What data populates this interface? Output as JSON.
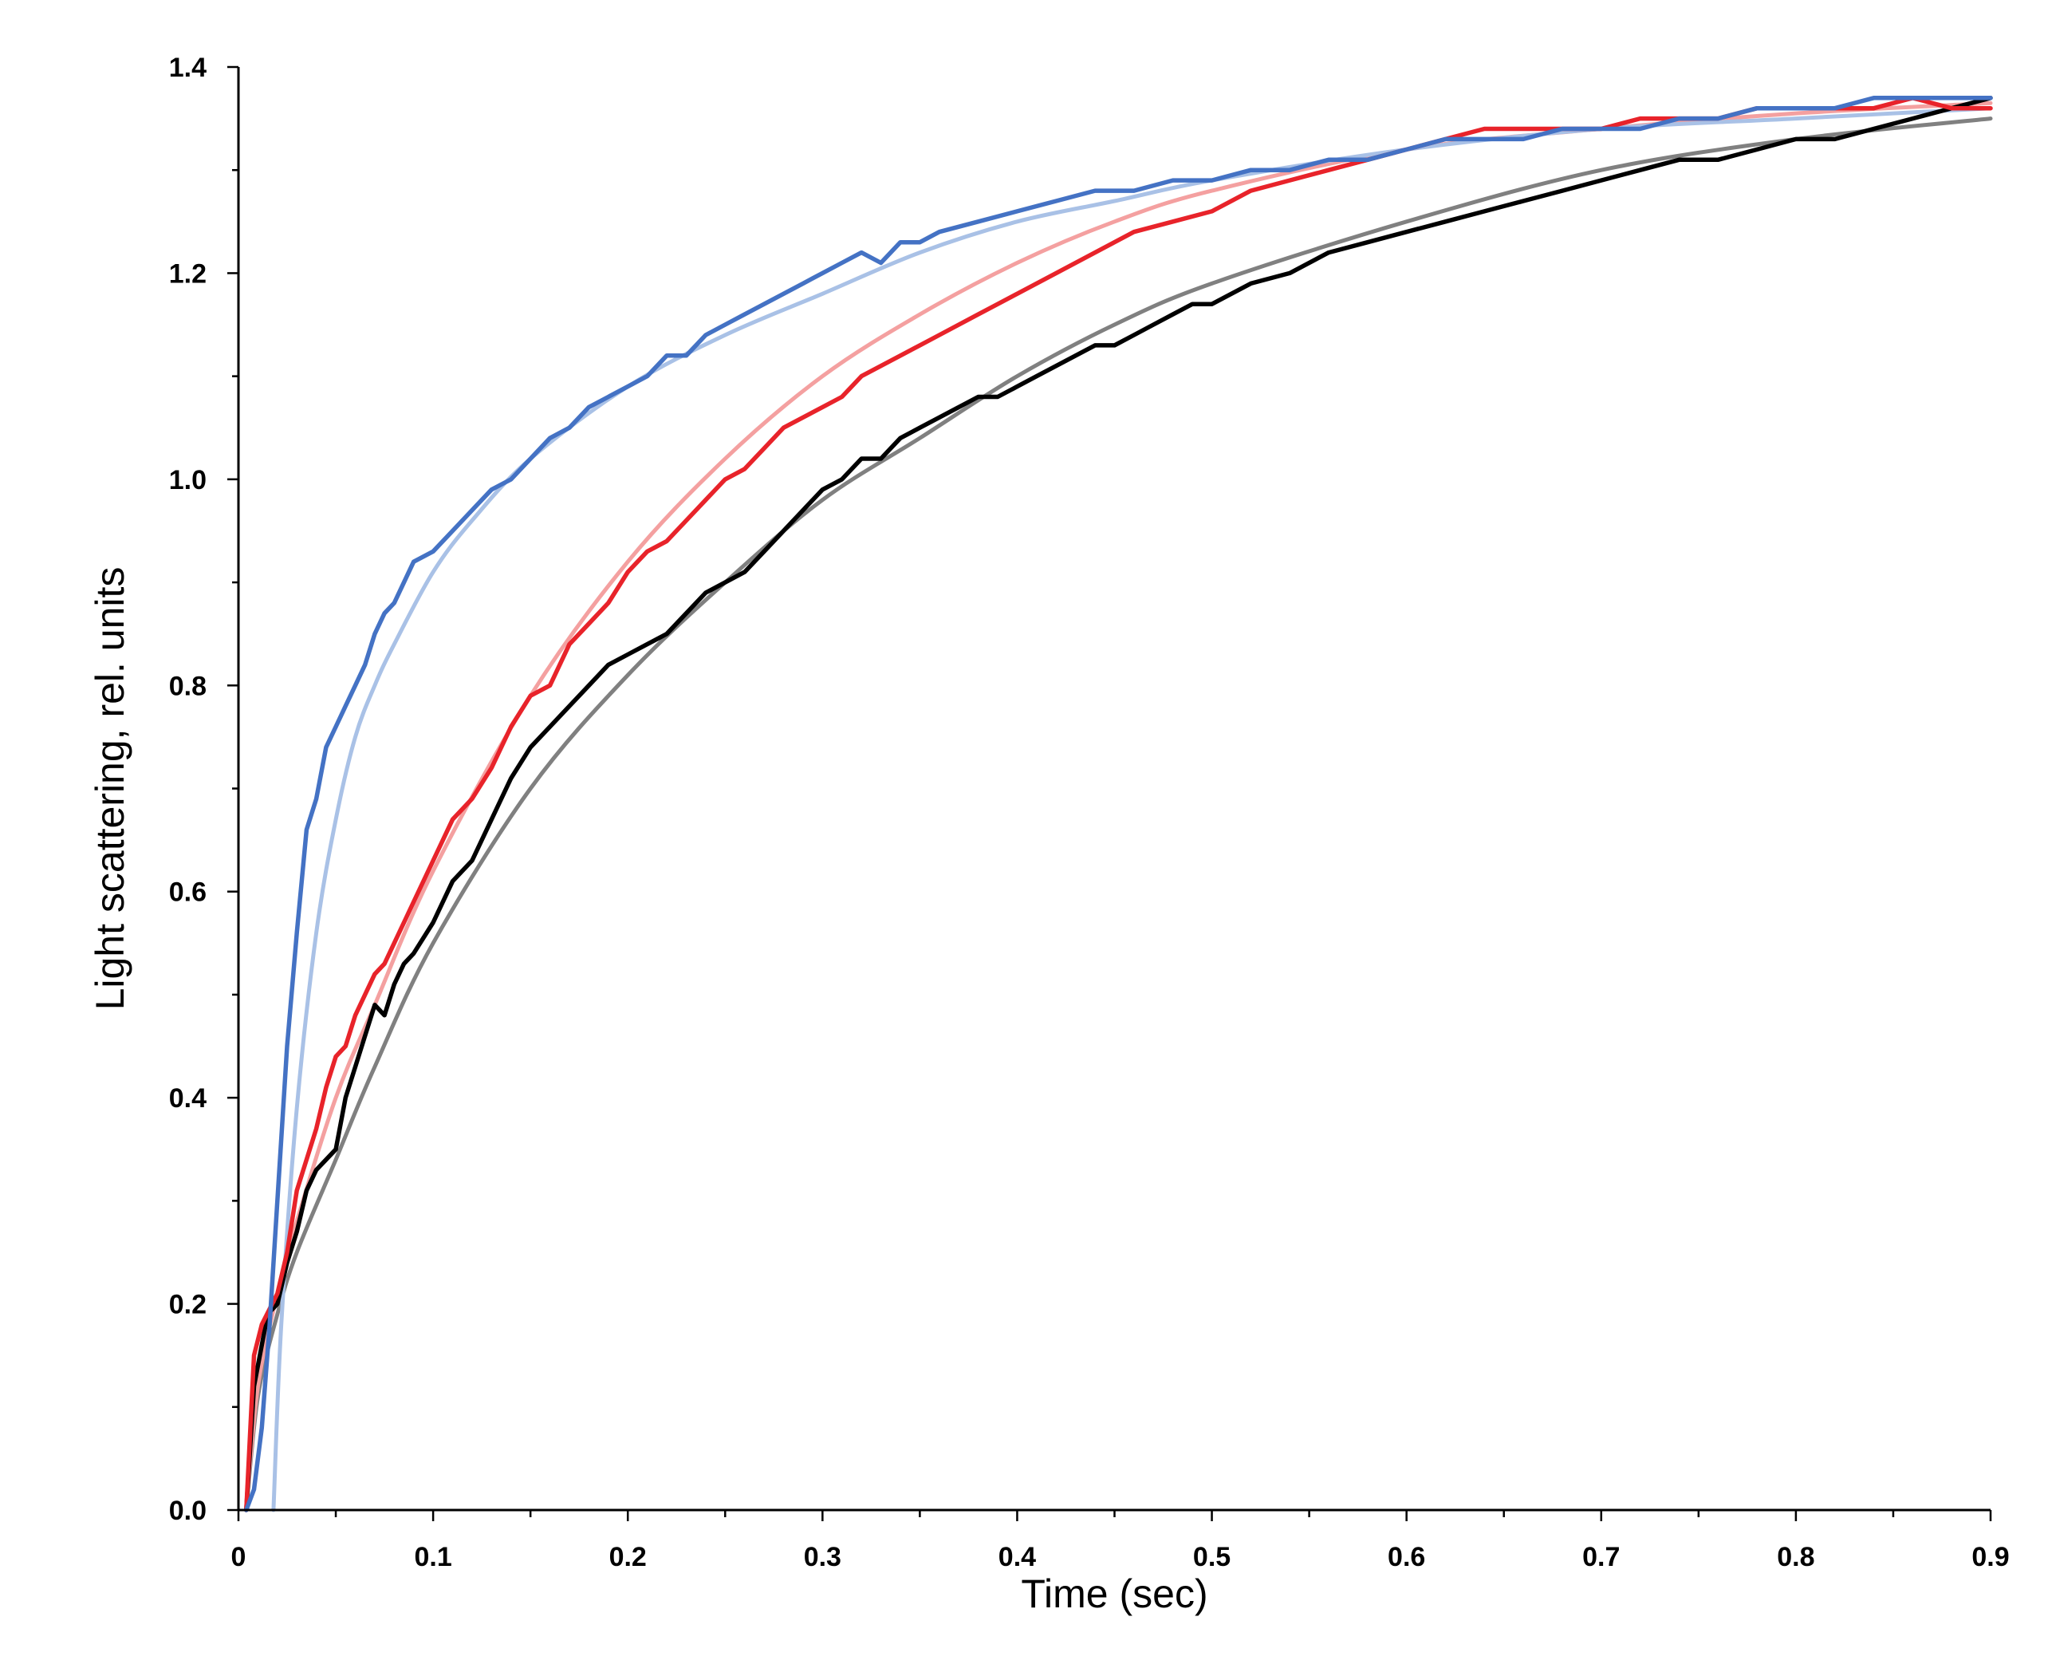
{
  "chart_data": {
    "type": "line",
    "title": "",
    "xlabel": "Time (sec)",
    "ylabel": "Light scattering, rel. units",
    "xlim": [
      0,
      0.9
    ],
    "ylim": [
      0,
      1.4
    ],
    "xticks": [
      0,
      0.1,
      0.2,
      0.3,
      0.4,
      0.5,
      0.6,
      0.7,
      0.8,
      0.9
    ],
    "xtick_labels": [
      "0",
      "0.1",
      "0.2",
      "0.3",
      "0.4",
      "0.5",
      "0.6",
      "0.7",
      "0.8",
      "0.9"
    ],
    "yticks": [
      0,
      0.2,
      0.4,
      0.6,
      0.8,
      1.0,
      1.2,
      1.4
    ],
    "ytick_labels": [
      "0.0",
      "0.2",
      "0.4",
      "0.6",
      "0.8",
      "1.0",
      "1.2",
      "1.4"
    ],
    "x_minor_step": 0.05,
    "y_minor_step": 0.1,
    "grid": false,
    "legend": "none",
    "series": [
      {
        "name": "black-fit",
        "kind": "fit",
        "color": "#808080",
        "x": [
          0.004,
          0.01,
          0.02,
          0.03,
          0.05,
          0.07,
          0.1,
          0.15,
          0.2,
          0.25,
          0.3,
          0.35,
          0.4,
          0.45,
          0.5,
          0.6,
          0.7,
          0.8,
          0.9
        ],
        "y": [
          0.0,
          0.11,
          0.19,
          0.25,
          0.34,
          0.43,
          0.55,
          0.7,
          0.81,
          0.9,
          0.98,
          1.04,
          1.1,
          1.15,
          1.19,
          1.25,
          1.3,
          1.33,
          1.35
        ]
      },
      {
        "name": "red-fit",
        "kind": "fit",
        "color": "#F4A0A0",
        "x": [
          0.004,
          0.01,
          0.02,
          0.03,
          0.05,
          0.07,
          0.1,
          0.15,
          0.2,
          0.25,
          0.3,
          0.35,
          0.4,
          0.45,
          0.5,
          0.6,
          0.7,
          0.8,
          0.9
        ],
        "y": [
          0.0,
          0.12,
          0.21,
          0.28,
          0.4,
          0.49,
          0.62,
          0.79,
          0.92,
          1.02,
          1.1,
          1.16,
          1.21,
          1.25,
          1.28,
          1.32,
          1.34,
          1.355,
          1.365
        ]
      },
      {
        "name": "blue-fit",
        "kind": "fit",
        "color": "#A9C1E6",
        "x": [
          0.018,
          0.022,
          0.03,
          0.04,
          0.05,
          0.06,
          0.07,
          0.08,
          0.1,
          0.12,
          0.15,
          0.2,
          0.25,
          0.3,
          0.35,
          0.4,
          0.45,
          0.5,
          0.6,
          0.7,
          0.8,
          0.9
        ],
        "y": [
          0.0,
          0.18,
          0.39,
          0.56,
          0.67,
          0.75,
          0.8,
          0.84,
          0.91,
          0.96,
          1.02,
          1.09,
          1.14,
          1.18,
          1.22,
          1.25,
          1.27,
          1.29,
          1.32,
          1.34,
          1.35,
          1.36
        ]
      },
      {
        "name": "black-data",
        "kind": "data",
        "color": "#000000",
        "x": [
          0.004,
          0.008,
          0.015,
          0.02,
          0.025,
          0.03,
          0.035,
          0.04,
          0.045,
          0.05,
          0.055,
          0.06,
          0.065,
          0.07,
          0.075,
          0.08,
          0.085,
          0.09,
          0.1,
          0.11,
          0.12,
          0.13,
          0.14,
          0.15,
          0.16,
          0.17,
          0.18,
          0.19,
          0.2,
          0.21,
          0.22,
          0.23,
          0.24,
          0.25,
          0.26,
          0.27,
          0.28,
          0.29,
          0.3,
          0.31,
          0.32,
          0.33,
          0.34,
          0.35,
          0.36,
          0.37,
          0.38,
          0.39,
          0.4,
          0.41,
          0.42,
          0.43,
          0.44,
          0.45,
          0.46,
          0.47,
          0.48,
          0.49,
          0.5,
          0.52,
          0.54,
          0.56,
          0.58,
          0.6,
          0.62,
          0.64,
          0.66,
          0.68,
          0.7,
          0.72,
          0.74,
          0.76,
          0.78,
          0.8,
          0.82,
          0.84,
          0.86,
          0.88,
          0.9
        ],
        "y": [
          0.0,
          0.12,
          0.19,
          0.2,
          0.24,
          0.27,
          0.31,
          0.33,
          0.34,
          0.35,
          0.4,
          0.43,
          0.46,
          0.49,
          0.48,
          0.51,
          0.53,
          0.54,
          0.57,
          0.61,
          0.63,
          0.67,
          0.71,
          0.74,
          0.76,
          0.78,
          0.8,
          0.82,
          0.83,
          0.84,
          0.85,
          0.87,
          0.89,
          0.9,
          0.91,
          0.93,
          0.95,
          0.97,
          0.99,
          1.0,
          1.02,
          1.02,
          1.04,
          1.05,
          1.06,
          1.07,
          1.08,
          1.08,
          1.09,
          1.1,
          1.11,
          1.12,
          1.13,
          1.13,
          1.14,
          1.15,
          1.16,
          1.17,
          1.17,
          1.19,
          1.2,
          1.22,
          1.23,
          1.24,
          1.25,
          1.26,
          1.27,
          1.28,
          1.29,
          1.3,
          1.31,
          1.31,
          1.32,
          1.33,
          1.33,
          1.34,
          1.35,
          1.36,
          1.37
        ]
      },
      {
        "name": "red-data",
        "kind": "data",
        "color": "#E8232A",
        "x": [
          0.004,
          0.008,
          0.012,
          0.02,
          0.025,
          0.03,
          0.035,
          0.04,
          0.045,
          0.05,
          0.055,
          0.06,
          0.065,
          0.07,
          0.075,
          0.08,
          0.09,
          0.1,
          0.11,
          0.12,
          0.13,
          0.14,
          0.15,
          0.16,
          0.17,
          0.18,
          0.19,
          0.2,
          0.21,
          0.22,
          0.23,
          0.24,
          0.25,
          0.26,
          0.27,
          0.28,
          0.29,
          0.3,
          0.31,
          0.32,
          0.33,
          0.34,
          0.35,
          0.36,
          0.38,
          0.4,
          0.42,
          0.44,
          0.46,
          0.48,
          0.5,
          0.52,
          0.54,
          0.56,
          0.58,
          0.6,
          0.62,
          0.64,
          0.66,
          0.68,
          0.7,
          0.72,
          0.74,
          0.76,
          0.78,
          0.8,
          0.82,
          0.84,
          0.86,
          0.88,
          0.9
        ],
        "y": [
          0.0,
          0.15,
          0.18,
          0.21,
          0.25,
          0.31,
          0.34,
          0.37,
          0.41,
          0.44,
          0.45,
          0.48,
          0.5,
          0.52,
          0.53,
          0.55,
          0.59,
          0.63,
          0.67,
          0.69,
          0.72,
          0.76,
          0.79,
          0.8,
          0.84,
          0.86,
          0.88,
          0.91,
          0.93,
          0.94,
          0.96,
          0.98,
          1.0,
          1.01,
          1.03,
          1.05,
          1.06,
          1.07,
          1.08,
          1.1,
          1.11,
          1.12,
          1.13,
          1.14,
          1.16,
          1.18,
          1.2,
          1.22,
          1.24,
          1.25,
          1.26,
          1.28,
          1.29,
          1.3,
          1.31,
          1.32,
          1.33,
          1.34,
          1.34,
          1.34,
          1.34,
          1.35,
          1.35,
          1.35,
          1.36,
          1.36,
          1.36,
          1.36,
          1.37,
          1.36,
          1.36
        ]
      },
      {
        "name": "blue-data",
        "kind": "data",
        "color": "#4472C4",
        "x": [
          0.004,
          0.008,
          0.012,
          0.016,
          0.02,
          0.025,
          0.03,
          0.035,
          0.04,
          0.045,
          0.05,
          0.055,
          0.06,
          0.065,
          0.07,
          0.075,
          0.08,
          0.09,
          0.1,
          0.11,
          0.12,
          0.13,
          0.14,
          0.15,
          0.16,
          0.17,
          0.18,
          0.19,
          0.2,
          0.21,
          0.22,
          0.23,
          0.24,
          0.25,
          0.26,
          0.27,
          0.28,
          0.29,
          0.3,
          0.31,
          0.32,
          0.33,
          0.34,
          0.35,
          0.36,
          0.38,
          0.4,
          0.42,
          0.44,
          0.46,
          0.48,
          0.5,
          0.52,
          0.54,
          0.56,
          0.58,
          0.6,
          0.62,
          0.64,
          0.66,
          0.68,
          0.7,
          0.72,
          0.74,
          0.76,
          0.78,
          0.8,
          0.82,
          0.84,
          0.86,
          0.88,
          0.9
        ],
        "y": [
          0.0,
          0.02,
          0.08,
          0.18,
          0.3,
          0.45,
          0.56,
          0.66,
          0.69,
          0.74,
          0.76,
          0.78,
          0.8,
          0.82,
          0.85,
          0.87,
          0.88,
          0.92,
          0.93,
          0.95,
          0.97,
          0.99,
          1.0,
          1.02,
          1.04,
          1.05,
          1.07,
          1.08,
          1.09,
          1.1,
          1.12,
          1.12,
          1.14,
          1.15,
          1.16,
          1.17,
          1.18,
          1.19,
          1.2,
          1.21,
          1.22,
          1.21,
          1.23,
          1.23,
          1.24,
          1.25,
          1.26,
          1.27,
          1.28,
          1.28,
          1.29,
          1.29,
          1.3,
          1.3,
          1.31,
          1.31,
          1.32,
          1.33,
          1.33,
          1.33,
          1.34,
          1.34,
          1.34,
          1.35,
          1.35,
          1.36,
          1.36,
          1.36,
          1.37,
          1.37,
          1.37,
          1.37
        ]
      }
    ]
  }
}
